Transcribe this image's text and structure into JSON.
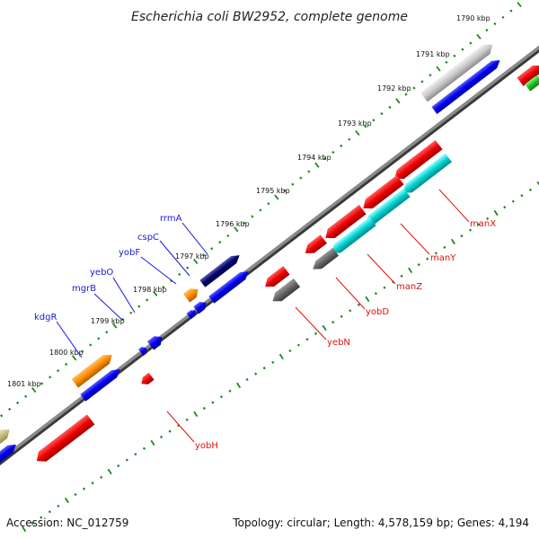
{
  "title": "Escherichia coli BW2952, complete genome",
  "footer": {
    "accession": "Accession: NC_012759",
    "summary": "Topology: circular; Length: 4,578,159 bp; Genes: 4,194"
  },
  "colors": {
    "backbone": "#7f7f7f",
    "tick": "#1a8a1a",
    "label_forward": "#1a1ad4",
    "label_reverse": "#e01010"
  },
  "scale_labels": [
    "1790 kbp",
    "1791 kbp",
    "1792 kbp",
    "1793 kbp",
    "1794 kbp",
    "1795 kbp",
    "1796 kbp",
    "1797 kbp",
    "1798 kbp",
    "1799 kbp",
    "1800 kbp",
    "1801 kbp"
  ],
  "gene_labels_forward": [
    "rrmA",
    "cspC",
    "yobF",
    "yebO",
    "mgrB",
    "kdgR"
  ],
  "gene_labels_reverse": [
    "manX",
    "manY",
    "manZ",
    "yobD",
    "yebN",
    "yobH"
  ]
}
